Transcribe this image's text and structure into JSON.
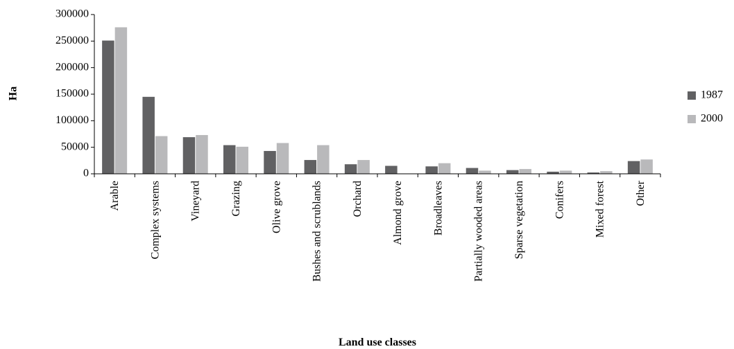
{
  "chart_data": {
    "type": "bar",
    "title": "",
    "xlabel": "Land use classes",
    "ylabel": "Ha",
    "ylim": [
      0,
      300000
    ],
    "yticks": [
      0,
      50000,
      100000,
      150000,
      200000,
      250000,
      300000
    ],
    "grid": false,
    "legend_position": "right",
    "categories": [
      "Arable",
      "Complex systems",
      "Vineyard",
      "Grazing",
      "Olive grove",
      "Bushes and scrublands",
      "Orchard",
      "Almond grove",
      "Broadleaves",
      "Partially wooded areas",
      "Sparse vegetation",
      "Conifers",
      "Mixed forest",
      "Other"
    ],
    "series": [
      {
        "name": "1987",
        "color": "#616163",
        "values": [
          251000,
          145000,
          69000,
          54000,
          43000,
          26000,
          18000,
          15000,
          14000,
          11000,
          7000,
          4000,
          2500,
          24000
        ]
      },
      {
        "name": "2000",
        "color": "#b9b9bb",
        "values": [
          276000,
          71000,
          73000,
          51000,
          58000,
          54000,
          26000,
          0,
          20000,
          6000,
          9000,
          6000,
          5000,
          27000
        ]
      }
    ]
  }
}
